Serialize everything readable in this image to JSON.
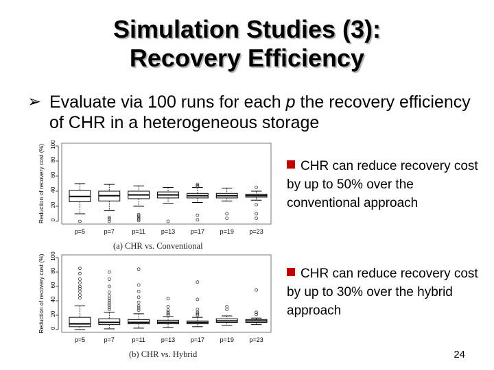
{
  "slide": {
    "title_line1": "Simulation Studies (3):",
    "title_line2": "Recovery Efficiency",
    "bullet_prefix": "Evaluate via 100 runs for each ",
    "bullet_var": "p",
    "bullet_suffix": " the recovery efficiency of CHR in a heterogeneous storage",
    "note1": "CHR can reduce recovery cost by up to 50% over the conventional approach",
    "note2": "CHR can reduce recovery cost by up to 30% over the hybrid approach",
    "page_number": "24"
  },
  "chart_data": [
    {
      "type": "box",
      "caption": "(a) CHR vs. Conventional",
      "ylabel": "Reduction of recovery cost (%)",
      "ylim": [
        0,
        100
      ],
      "yticks": [
        0,
        20,
        40,
        60,
        80,
        100
      ],
      "categories": [
        "p=5",
        "p=7",
        "p=11",
        "p=13",
        "p=17",
        "p=19",
        "p=23"
      ],
      "boxes": [
        {
          "min": 10,
          "q1": 26,
          "median": 33,
          "q3": 41,
          "max": 50,
          "outliers": [
            0
          ]
        },
        {
          "min": 14,
          "q1": 27,
          "median": 34,
          "q3": 40,
          "max": 49,
          "outliers": [
            5,
            3,
            0
          ]
        },
        {
          "min": 20,
          "q1": 30,
          "median": 35,
          "q3": 40,
          "max": 47,
          "outliers": [
            9,
            7,
            5,
            3,
            1
          ]
        },
        {
          "min": 24,
          "q1": 31,
          "median": 35,
          "q3": 39,
          "max": 45,
          "outliers": [
            0
          ]
        },
        {
          "min": 25,
          "q1": 31,
          "median": 34,
          "q3": 37,
          "max": 45,
          "outliers": [
            49,
            47,
            46,
            8,
            2
          ]
        },
        {
          "min": 27,
          "q1": 31,
          "median": 34,
          "q3": 37,
          "max": 44,
          "outliers": [
            10,
            4
          ]
        },
        {
          "min": 28,
          "q1": 32,
          "median": 34,
          "q3": 36,
          "max": 40,
          "outliers": [
            45,
            22,
            10,
            4
          ]
        }
      ]
    },
    {
      "type": "box",
      "caption": "(b) CHR vs. Hybrid",
      "ylabel": "Reduction of recovery cost (%)",
      "ylim": [
        0,
        100
      ],
      "yticks": [
        0,
        20,
        40,
        60,
        80,
        100
      ],
      "categories": [
        "p=5",
        "p=7",
        "p=11",
        "p=13",
        "p=17",
        "p=19",
        "p=23"
      ],
      "boxes": [
        {
          "min": 0,
          "q1": 4,
          "median": 8,
          "q3": 17,
          "max": 33,
          "outliers": [
            85,
            78,
            70,
            65,
            60,
            57,
            53,
            48,
            44
          ]
        },
        {
          "min": 1,
          "q1": 7,
          "median": 10,
          "q3": 15,
          "max": 24,
          "outliers": [
            80,
            70,
            60,
            52,
            47,
            43,
            40,
            37,
            34,
            31,
            28
          ]
        },
        {
          "min": 2,
          "q1": 8,
          "median": 10,
          "q3": 14,
          "max": 22,
          "outliers": [
            84,
            62,
            53,
            45,
            38,
            33,
            30,
            27
          ]
        },
        {
          "min": 3,
          "q1": 8,
          "median": 10,
          "q3": 13,
          "max": 18,
          "outliers": [
            43,
            32,
            27,
            24,
            22,
            20
          ]
        },
        {
          "min": 4,
          "q1": 8,
          "median": 10,
          "q3": 12,
          "max": 17,
          "outliers": [
            66,
            42,
            28,
            24,
            22,
            20
          ]
        },
        {
          "min": 6,
          "q1": 10,
          "median": 12,
          "q3": 15,
          "max": 19,
          "outliers": [
            32,
            28
          ]
        },
        {
          "min": 7,
          "q1": 10,
          "median": 12,
          "q3": 14,
          "max": 16,
          "outliers": [
            55,
            24,
            21
          ]
        }
      ]
    }
  ]
}
